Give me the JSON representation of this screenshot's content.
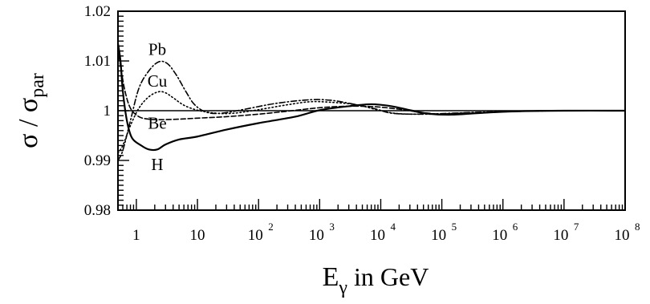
{
  "chart_data": {
    "type": "line",
    "x_scale": "log",
    "xlim": [
      0.5,
      100000000
    ],
    "ylim": [
      0.98,
      1.02
    ],
    "grid": false,
    "legend": "none",
    "ylabel": {
      "main": "σ / σ",
      "sub": "par"
    },
    "xlabel": {
      "main": "E",
      "sub": "γ",
      "rest": " in GeV"
    },
    "y_ticks": [
      {
        "value": 0.98,
        "label": "0.98"
      },
      {
        "value": 0.99,
        "label": "0.99"
      },
      {
        "value": 1.0,
        "label": "1"
      },
      {
        "value": 1.01,
        "label": "1.01"
      },
      {
        "value": 1.02,
        "label": "1.02"
      }
    ],
    "x_ticks": [
      {
        "value": 1,
        "base": "1",
        "exp": ""
      },
      {
        "value": 10,
        "base": "10",
        "exp": ""
      },
      {
        "value": 100,
        "base": "10",
        "exp": "2"
      },
      {
        "value": 1000,
        "base": "10",
        "exp": "3"
      },
      {
        "value": 10000,
        "base": "10",
        "exp": "4"
      },
      {
        "value": 100000,
        "base": "10",
        "exp": "5"
      },
      {
        "value": 1000000,
        "base": "10",
        "exp": "6"
      },
      {
        "value": 10000000,
        "base": "10",
        "exp": "7"
      },
      {
        "value": 100000000,
        "base": "10",
        "exp": "8"
      }
    ],
    "reference_line": 1.0,
    "series": [
      {
        "name": "H",
        "dash": "solid",
        "label_at": [
          2.2,
          0.9881
        ],
        "points": [
          [
            0.5,
            1.0135
          ],
          [
            0.55,
            1.01
          ],
          [
            0.6,
            1.004
          ],
          [
            0.7,
            0.998
          ],
          [
            0.85,
            0.9945
          ],
          [
            1.2,
            0.993
          ],
          [
            1.6,
            0.9922
          ],
          [
            2.2,
            0.9922
          ],
          [
            3.0,
            0.9932
          ],
          [
            5,
            0.9942
          ],
          [
            10,
            0.9948
          ],
          [
            30,
            0.9962
          ],
          [
            100,
            0.9975
          ],
          [
            400,
            0.9988
          ],
          [
            1000,
            1.0001
          ],
          [
            3000,
            1.0009
          ],
          [
            7000,
            1.0013
          ],
          [
            15000,
            1.0009
          ],
          [
            30000,
            1.0001
          ],
          [
            60000,
            0.9994
          ],
          [
            150000,
            0.9992
          ],
          [
            500000,
            0.9996
          ],
          [
            2000000,
            0.9999
          ],
          [
            10000000,
            1.0
          ],
          [
            100000000,
            1.0
          ]
        ]
      },
      {
        "name": "Be",
        "dash": "dashed",
        "label_at": [
          2.2,
          0.9964
        ],
        "points": [
          [
            0.5,
            1.0125
          ],
          [
            0.55,
            1.009
          ],
          [
            0.65,
            1.004
          ],
          [
            0.8,
            1.0005
          ],
          [
            1.1,
            0.9988
          ],
          [
            1.6,
            0.9983
          ],
          [
            2.5,
            0.9982
          ],
          [
            5,
            0.9983
          ],
          [
            10,
            0.9985
          ],
          [
            30,
            0.9988
          ],
          [
            100,
            0.9993
          ],
          [
            300,
            0.9999
          ],
          [
            1000,
            1.0006
          ],
          [
            3000,
            1.0009
          ],
          [
            8000,
            1.0008
          ],
          [
            20000,
            1.0003
          ],
          [
            50000,
            0.9996
          ],
          [
            120000,
            0.9993
          ],
          [
            500000,
            0.9996
          ],
          [
            2000000,
            0.9999
          ],
          [
            10000000,
            1.0
          ],
          [
            100000000,
            1.0
          ]
        ]
      },
      {
        "name": "Cu",
        "dash": "dotted",
        "label_at": [
          2.2,
          1.0048
        ],
        "points": [
          [
            0.5,
            0.9915
          ],
          [
            0.6,
            0.993
          ],
          [
            0.8,
            0.997
          ],
          [
            1.1,
            1.0005
          ],
          [
            1.6,
            1.0028
          ],
          [
            2.3,
            1.0038
          ],
          [
            3.0,
            1.0036
          ],
          [
            4.0,
            1.0026
          ],
          [
            6,
            1.0011
          ],
          [
            10,
            1.0001
          ],
          [
            20,
            0.9995
          ],
          [
            40,
            0.9995
          ],
          [
            100,
            1.0002
          ],
          [
            300,
            1.0012
          ],
          [
            700,
            1.0018
          ],
          [
            1500,
            1.0017
          ],
          [
            4000,
            1.0012
          ],
          [
            10000,
            1.0
          ],
          [
            20000,
            0.9994
          ],
          [
            60000,
            0.9993
          ],
          [
            200000,
            0.9995
          ],
          [
            1000000,
            0.9998
          ],
          [
            10000000,
            1.0
          ],
          [
            100000000,
            1.0
          ]
        ]
      },
      {
        "name": "Pb",
        "dash": "dashdot",
        "label_at": [
          2.2,
          1.0112
        ],
        "points": [
          [
            0.5,
            0.99
          ],
          [
            0.6,
            0.992
          ],
          [
            0.8,
            0.998
          ],
          [
            1.1,
            1.0045
          ],
          [
            1.6,
            1.008
          ],
          [
            2.3,
            1.0098
          ],
          [
            3.2,
            1.0095
          ],
          [
            4.5,
            1.0072
          ],
          [
            6.5,
            1.0038
          ],
          [
            9,
            1.0012
          ],
          [
            14,
            0.9997
          ],
          [
            25,
            0.9995
          ],
          [
            60,
            1.0003
          ],
          [
            200,
            1.0015
          ],
          [
            700,
            1.0022
          ],
          [
            1500,
            1.0021
          ],
          [
            3000,
            1.0015
          ],
          [
            8000,
            1.0004
          ],
          [
            15000,
            0.9995
          ],
          [
            40000,
            0.9993
          ],
          [
            150000,
            0.9995
          ],
          [
            800000,
            0.9998
          ],
          [
            10000000,
            1.0
          ],
          [
            100000000,
            1.0
          ]
        ]
      }
    ]
  }
}
